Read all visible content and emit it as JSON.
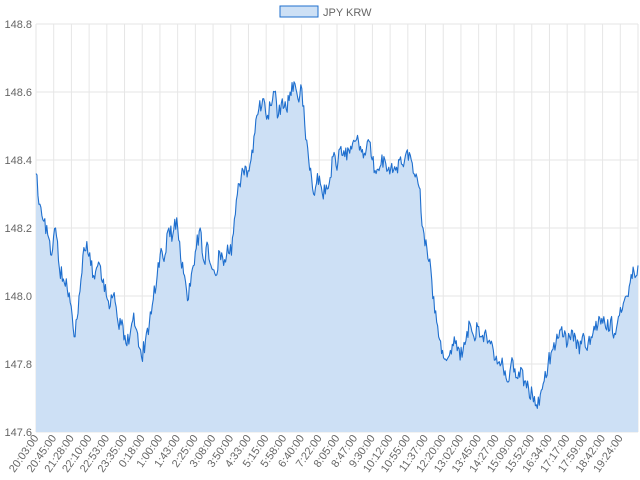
{
  "chart_data": {
    "type": "area",
    "legend": {
      "position": "top-center",
      "label": "JPY KRW"
    },
    "series": [
      {
        "name": "JPY KRW",
        "color": "#1f6fce",
        "fill": "#cde0f5",
        "y": [
          148.36,
          148.27,
          148.22,
          148.18,
          148.12,
          148.2,
          148.08,
          148.05,
          148.02,
          147.97,
          147.88,
          148.0,
          148.12,
          148.16,
          148.09,
          148.05,
          148.1,
          148.04,
          148.0,
          147.97,
          148.01,
          147.92,
          147.93,
          147.86,
          147.88,
          147.95,
          147.89,
          147.82,
          147.87,
          147.92,
          147.99,
          148.06,
          148.14,
          148.12,
          148.2,
          148.18,
          148.23,
          148.11,
          148.06,
          147.99,
          148.08,
          148.14,
          148.2,
          148.1,
          148.15,
          148.08,
          148.06,
          148.13,
          148.09,
          148.15,
          148.12,
          148.24,
          148.33,
          148.37,
          148.35,
          148.4,
          148.48,
          148.55,
          148.58,
          148.52,
          148.56,
          148.6,
          148.53,
          148.58,
          148.55,
          148.6,
          148.63,
          148.58,
          148.61,
          148.46,
          148.37,
          148.3,
          148.36,
          148.32,
          148.3,
          148.33,
          148.41,
          148.37,
          148.44,
          148.41,
          148.43,
          148.45,
          148.46,
          148.44,
          148.42,
          148.46,
          148.4,
          148.36,
          148.38,
          148.41,
          148.37,
          148.39,
          148.37,
          148.4,
          148.38,
          148.43,
          148.4,
          148.35,
          148.32,
          148.2,
          148.14,
          148.08,
          147.95,
          147.88,
          147.84,
          147.81,
          147.84,
          147.88,
          147.85,
          147.82,
          147.87,
          147.92,
          147.88,
          147.91,
          147.88,
          147.9,
          147.87,
          147.84,
          147.8,
          147.8,
          147.78,
          147.75,
          147.81,
          147.76,
          147.79,
          147.75,
          147.73,
          147.71,
          147.68,
          147.71,
          147.75,
          147.8,
          147.84,
          147.86,
          147.9,
          147.88,
          147.86,
          147.9,
          147.88,
          147.83,
          147.89,
          147.84,
          147.88,
          147.9,
          147.94,
          147.92,
          147.9,
          147.93,
          147.89,
          147.94,
          147.96,
          148.0,
          148.04,
          148.07,
          148.09
        ]
      }
    ],
    "x_tick_labels": [
      "20:03:00",
      "20:45:00",
      "21:28:00",
      "22:10:00",
      "22:53:00",
      "23:35:00",
      "0:18:00",
      "1:00:00",
      "1:43:00",
      "2:25:00",
      "3:08:00",
      "3:50:00",
      "4:33:00",
      "5:15:00",
      "5:58:00",
      "6:40:00",
      "7:22:00",
      "8:05:00",
      "8:47:00",
      "9:30:00",
      "10:12:00",
      "10:55:00",
      "11:37:00",
      "12:20:00",
      "13:02:00",
      "13:45:00",
      "14:27:00",
      "15:09:00",
      "15:52:00",
      "16:34:00",
      "17:17:00",
      "17:59:00",
      "18:42:00",
      "19:24:00"
    ],
    "y_ticks": [
      147.6,
      147.8,
      148.0,
      148.2,
      148.4,
      148.6,
      148.8
    ],
    "y_tick_labels": [
      "147.6",
      "147.8",
      "148.0",
      "148.2",
      "148.4",
      "148.6",
      "148.8"
    ],
    "ylim": [
      147.6,
      148.8
    ],
    "grid": true
  }
}
